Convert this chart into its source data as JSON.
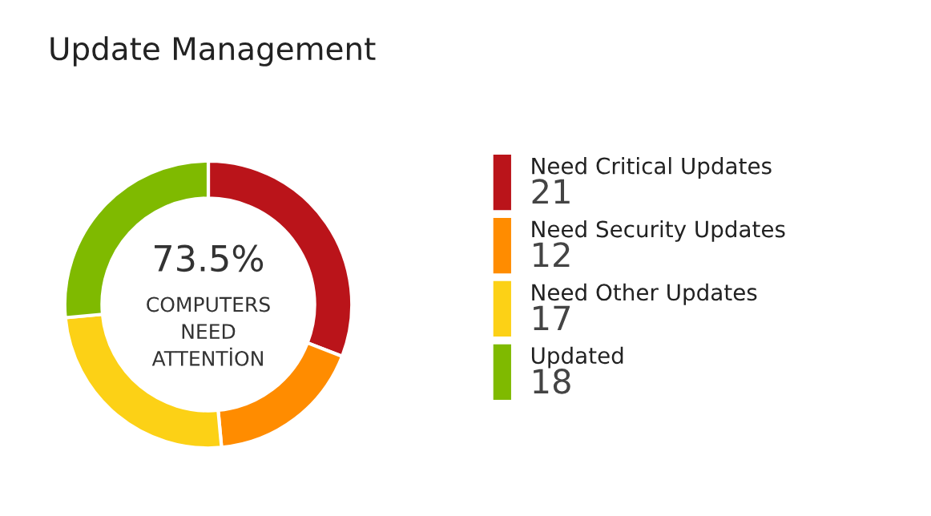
{
  "chart_data": {
    "type": "donut",
    "title": "Update Management",
    "categories": [
      "Need Critical Updates",
      "Need Security Updates",
      "Need Other Updates",
      "Updated"
    ],
    "values": [
      21,
      12,
      17,
      18
    ],
    "colors": [
      "#ba141a",
      "#ff8c00",
      "#fcd116",
      "#7fba00"
    ],
    "data_labels": true,
    "legend": "right",
    "annotations": [
      "73.5%",
      "COMPUTERS\nNEED\nATTENTİON"
    ]
  }
}
